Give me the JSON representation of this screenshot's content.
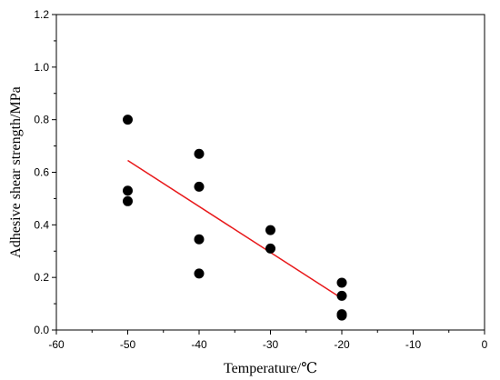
{
  "chart_data": {
    "type": "scatter",
    "title": "",
    "xlabel": "Temperature/℃",
    "ylabel": "Adhesive shear strength/MPa",
    "xlim": [
      -60,
      0
    ],
    "ylim": [
      0.0,
      1.2
    ],
    "xticks": [
      -60,
      -50,
      -40,
      -30,
      -20,
      -10,
      0
    ],
    "xtick_labels": [
      "-60",
      "-50",
      "-40",
      "-30",
      "-20",
      "-10",
      "0"
    ],
    "yticks": [
      0.0,
      0.2,
      0.4,
      0.6,
      0.8,
      1.0,
      1.2
    ],
    "ytick_labels": [
      "0.0",
      "0.2",
      "0.4",
      "0.6",
      "0.8",
      "1.0",
      "1.2"
    ],
    "grid": false,
    "legend": "none",
    "point_color": "#000000",
    "fit_color": "#e8191b",
    "series": [
      {
        "x": [
          -50,
          -50,
          -50,
          -40,
          -40,
          -40,
          -40,
          -30,
          -30,
          -20,
          -20,
          -20,
          -20
        ],
        "y": [
          0.8,
          0.53,
          0.49,
          0.67,
          0.545,
          0.345,
          0.215,
          0.38,
          0.31,
          0.18,
          0.13,
          0.06,
          0.055
        ]
      }
    ],
    "fit_line": {
      "x": [
        -50,
        -20
      ],
      "y": [
        0.645,
        0.12
      ]
    }
  }
}
